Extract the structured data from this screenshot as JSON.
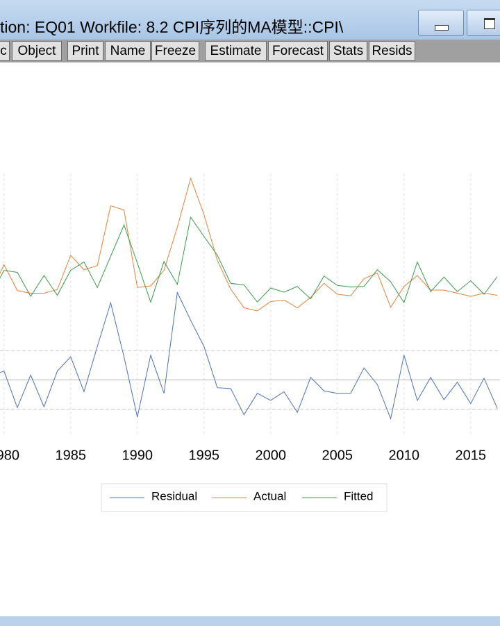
{
  "window": {
    "title": "tion: EQ01    Workfile: 8.2 CPI序列的MA模型::CPI\\"
  },
  "toolbar": {
    "buttons": [
      "c",
      "Object",
      "Print",
      "Name",
      "Freeze",
      "Estimate",
      "Forecast",
      "Stats",
      "Resids"
    ]
  },
  "chart_data": {
    "type": "line",
    "x": [
      1979,
      1980,
      1981,
      1982,
      1983,
      1984,
      1985,
      1986,
      1987,
      1988,
      1989,
      1990,
      1991,
      1992,
      1993,
      1994,
      1995,
      1996,
      1997,
      1998,
      1999,
      2000,
      2001,
      2002,
      2003,
      2004,
      2005,
      2006,
      2007,
      2008,
      2009,
      2010,
      2011,
      2012,
      2013,
      2014,
      2015,
      2016,
      2017
    ],
    "xlim": [
      1979.7,
      2017.2
    ],
    "xticks": [
      1980,
      1985,
      1990,
      1995,
      2000,
      2005,
      2010,
      2015
    ],
    "ylim": [
      -6.8,
      26
    ],
    "y2lim": [
      75,
      125
    ],
    "reference_lines": [
      0,
      3.7,
      -3.7
    ],
    "grid": true,
    "series": [
      {
        "name": "Residual",
        "color": "#4a72b8",
        "values": [
          0.5,
          1.1,
          -3.5,
          0.6,
          -3.4,
          1.1,
          2.9,
          -1.5,
          4.2,
          9.7,
          2.9,
          -4.7,
          3.1,
          -1.7,
          11.0,
          7.5,
          4.2,
          -1.0,
          -1.1,
          -4.4,
          -1.7,
          -2.6,
          -1.5,
          -4.1,
          0.3,
          -1.4,
          -1.7,
          -1.7,
          1.5,
          -0.6,
          -4.9,
          3.1,
          -2.6,
          0.3,
          -2.5,
          -0.3,
          -3.0,
          0.2,
          -3.6
        ]
      },
      {
        "name": "Actual",
        "color": "#e8803a",
        "axis": "y2",
        "values": [
          102.0,
          107.5,
          102.5,
          102.0,
          102.0,
          102.7,
          109.3,
          106.5,
          107.3,
          118.8,
          118.0,
          103.1,
          103.4,
          106.4,
          114.7,
          124.1,
          117.1,
          108.3,
          102.8,
          99.2,
          98.6,
          100.4,
          100.7,
          99.2,
          101.2,
          103.9,
          101.8,
          101.5,
          104.8,
          105.9,
          99.3,
          103.3,
          105.4,
          102.6,
          102.6,
          102.0,
          101.4,
          102.0,
          101.6
        ]
      },
      {
        "name": "Fitted",
        "color": "#3c9a4c",
        "axis": "y2",
        "values": [
          101.5,
          106.4,
          106.0,
          101.4,
          105.4,
          101.6,
          106.4,
          108.0,
          103.1,
          109.1,
          115.1,
          107.8,
          100.3,
          108.1,
          103.7,
          116.6,
          112.9,
          109.3,
          103.9,
          103.6,
          100.3,
          103.0,
          102.2,
          103.3,
          100.9,
          105.3,
          103.5,
          103.2,
          103.3,
          106.5,
          104.2,
          100.2,
          108.0,
          102.3,
          105.1,
          102.3,
          104.4,
          101.8,
          105.2
        ]
      }
    ]
  }
}
